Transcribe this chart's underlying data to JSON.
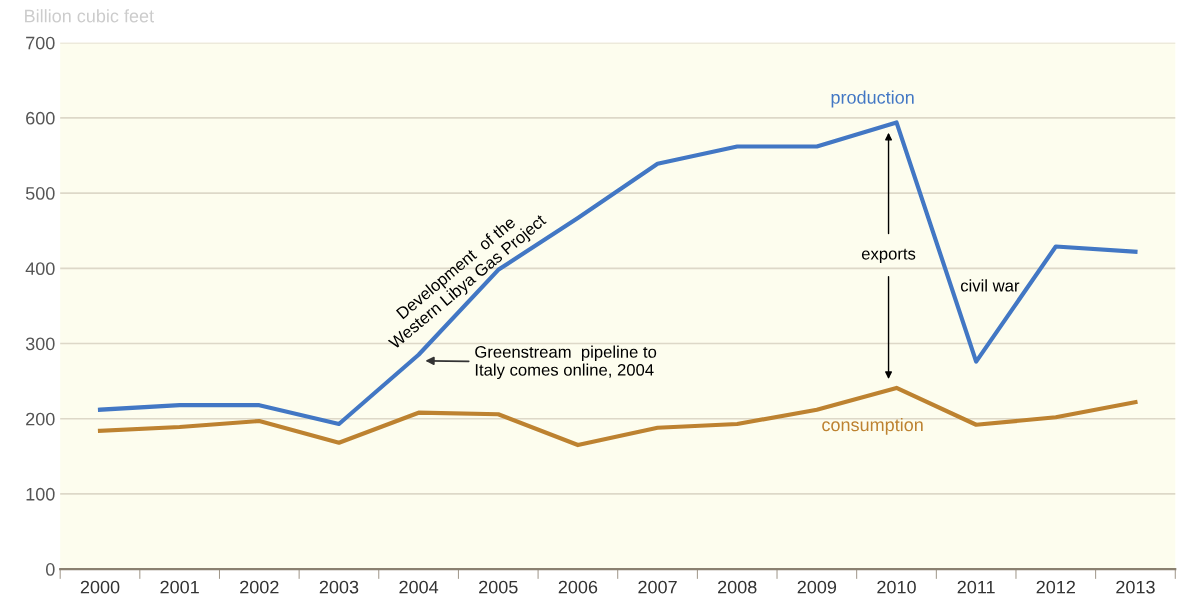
{
  "chart_data": {
    "type": "line",
    "ylabel": "Billion cubic feet",
    "categories": [
      "2000",
      "2001",
      "2002",
      "2003",
      "2004",
      "2005",
      "2006",
      "2007",
      "2008",
      "2009",
      "2010",
      "2011",
      "2012",
      "2013"
    ],
    "series": [
      {
        "name": "production",
        "color": "#4277c4",
        "values": [
          212,
          218,
          218,
          193,
          285,
          398,
          467,
          539,
          562,
          562,
          594,
          276,
          429,
          422
        ]
      },
      {
        "name": "consumption",
        "color": "#bd8230",
        "values": [
          184,
          189,
          197,
          168,
          208,
          206,
          165,
          188,
          193,
          212,
          241,
          192,
          202,
          222
        ]
      }
    ],
    "ylim": [
      0,
      700
    ],
    "yticks": [
      0,
      100,
      200,
      300,
      400,
      500,
      600,
      700
    ],
    "grid": "y",
    "legend": false,
    "marker": "none",
    "line_style": "solid",
    "annotations": [
      "Development  of the\nWestern Libya Gas Project",
      "Greenstream  pipeline to\nItaly comes online, 2004",
      "exports",
      "civil war"
    ]
  }
}
